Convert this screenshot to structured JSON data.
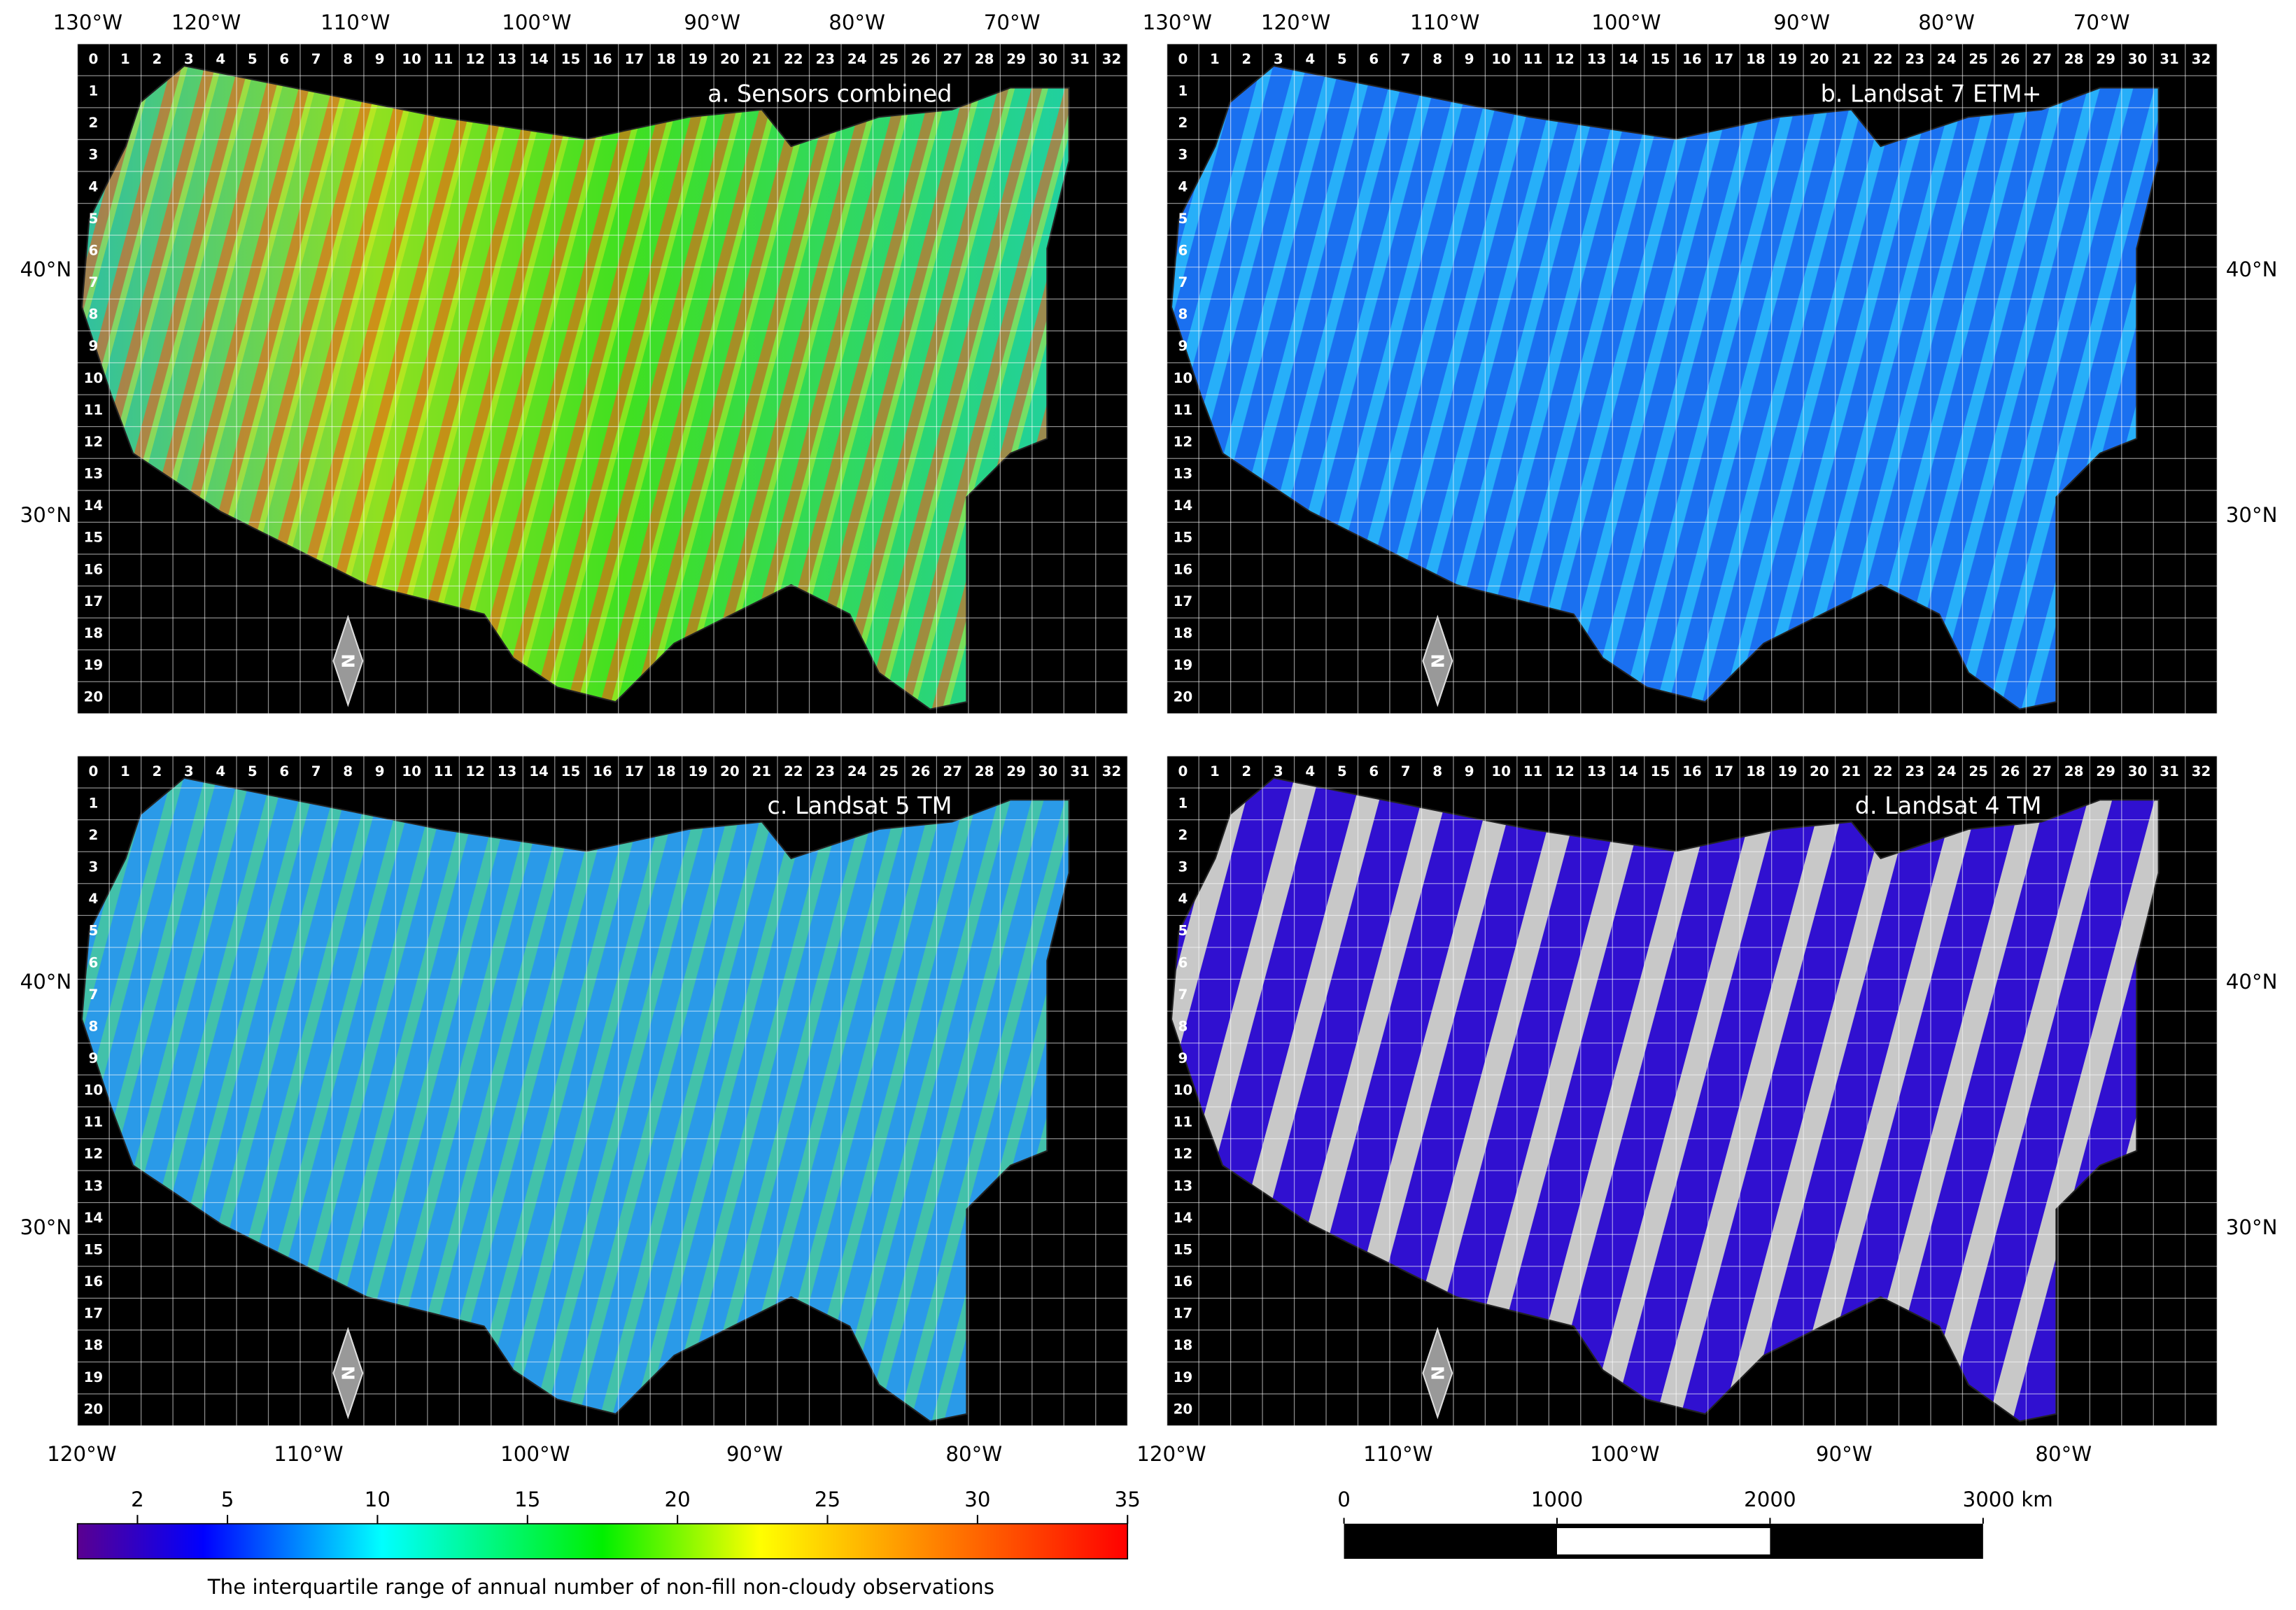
{
  "panels": [
    {
      "title": "a. Sensors combined",
      "lon_labels": [
        "130°W",
        "120°W",
        "110°W",
        "100°W",
        "90°W",
        "80°W",
        "70°W"
      ],
      "lat_labels": [
        "40°N",
        "30°N"
      ]
    },
    {
      "title": "b. Landsat 7 ETM+",
      "lon_labels": [
        "130°W",
        "120°W",
        "110°W",
        "100°W",
        "90°W",
        "80°W",
        "70°W"
      ],
      "lat_labels": [
        "40°N",
        "30°N"
      ]
    },
    {
      "title": "c. Landsat 5 TM",
      "lon_labels": [
        "120°W",
        "110°W",
        "100°W",
        "90°W",
        "80°W"
      ],
      "lat_labels": [
        "40°N",
        "30°N"
      ]
    },
    {
      "title": "d. Landsat 4 TM",
      "lon_labels": [
        "120°W",
        "110°W",
        "100°W",
        "90°W",
        "80°W"
      ],
      "lat_labels": [
        "40°N",
        "30°N"
      ]
    }
  ],
  "grid": {
    "columns": [
      0,
      1,
      2,
      3,
      4,
      5,
      6,
      7,
      8,
      9,
      10,
      11,
      12,
      13,
      14,
      15,
      16,
      17,
      18,
      19,
      20,
      21,
      22,
      23,
      24,
      25,
      26,
      27,
      28,
      29,
      30,
      31,
      32
    ],
    "rows": [
      1,
      2,
      3,
      4,
      5,
      6,
      7,
      8,
      9,
      10,
      11,
      12,
      13,
      14,
      15,
      16,
      17,
      18,
      19,
      20
    ]
  },
  "north_label": "N",
  "colorbar": {
    "label": "The interquartile range of annual number of non-fill non-cloudy observations",
    "lim": [
      0,
      35
    ],
    "ticks": [
      2,
      5,
      10,
      15,
      20,
      25,
      30,
      35
    ]
  },
  "scale_bar": {
    "lim": [
      0,
      3000
    ],
    "ticks": [
      0,
      1000,
      2000,
      {
        "value": 3000,
        "label": "3000 km"
      }
    ]
  }
}
